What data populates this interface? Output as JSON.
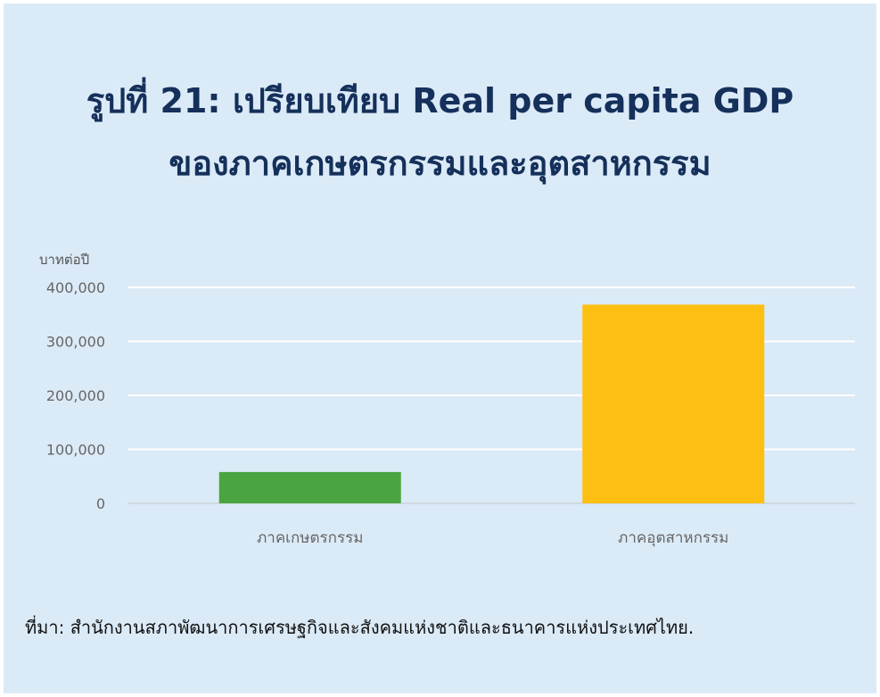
{
  "title": {
    "line1": "รูปที่ 21: เปรียบเทียบ Real per capita GDP",
    "line2": "ของภาคเกษตรกรรมและอุตสาหกรรม"
  },
  "source": "ที่มา: สำนักงานสภาพัฒนาการเศรษฐกิจและสังคมแห่งชาติและธนาคารแห่งประเทศไทย.",
  "chart_data": {
    "type": "bar",
    "ylabel": "บาทต่อปี",
    "categories": [
      "ภาคเกษตรกรรม",
      "ภาคอุตสาหกรรม"
    ],
    "values": [
      58000,
      368000
    ],
    "colors": [
      "#4aa541",
      "#fdbf12"
    ],
    "ylim": [
      0,
      400000
    ],
    "yticks": [
      0,
      100000,
      200000,
      300000,
      400000
    ],
    "ytick_labels": [
      "0",
      "100,000",
      "200,000",
      "300,000",
      "400,000"
    ],
    "grid": true,
    "legend": "none"
  },
  "colors": {
    "background": "#dbeaf7",
    "title": "#15305a",
    "gridline": "#ffffff",
    "axis_text": "#666666"
  }
}
